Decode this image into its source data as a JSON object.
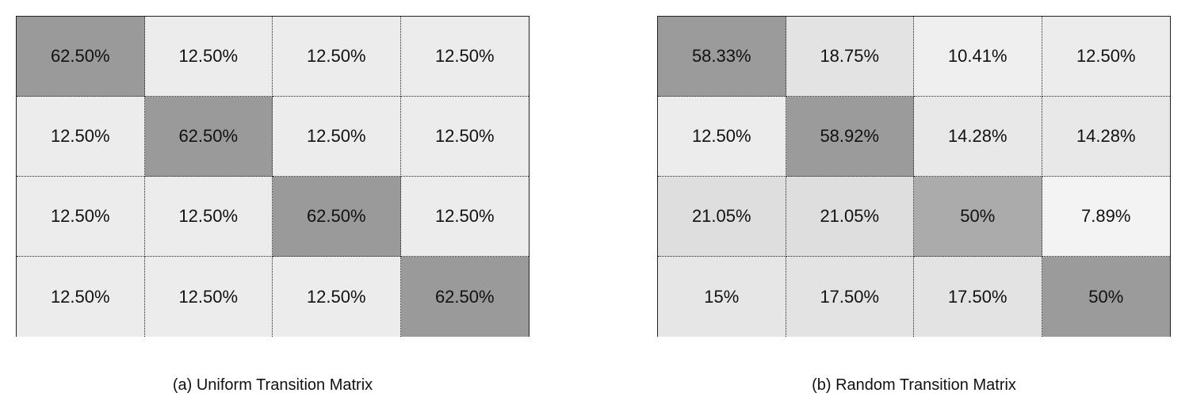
{
  "figures": [
    {
      "caption": "(a) Uniform Transition Matrix",
      "rows": [
        [
          "62.50%",
          "12.50%",
          "12.50%",
          "12.50%"
        ],
        [
          "12.50%",
          "62.50%",
          "12.50%",
          "12.50%"
        ],
        [
          "12.50%",
          "12.50%",
          "62.50%",
          "12.50%"
        ],
        [
          "12.50%",
          "12.50%",
          "12.50%",
          "62.50%"
        ]
      ],
      "shades": [
        [
          "#9a9a9a",
          "#ececec",
          "#ececec",
          "#ececec"
        ],
        [
          "#ececec",
          "#9a9a9a",
          "#ececec",
          "#ececec"
        ],
        [
          "#ececec",
          "#ececec",
          "#9a9a9a",
          "#ececec"
        ],
        [
          "#ececec",
          "#ececec",
          "#ececec",
          "#9a9a9a"
        ]
      ]
    },
    {
      "caption": "(b) Random Transition Matrix",
      "rows": [
        [
          "58.33%",
          "18.75%",
          "10.41%",
          "12.50%"
        ],
        [
          "12.50%",
          "58.92%",
          "14.28%",
          "14.28%"
        ],
        [
          "21.05%",
          "21.05%",
          "50%",
          "7.89%"
        ],
        [
          "15%",
          "17.50%",
          "17.50%",
          "50%"
        ]
      ],
      "shades": [
        [
          "#9b9b9b",
          "#e3e3e3",
          "#efefef",
          "#ececec"
        ],
        [
          "#ececec",
          "#9b9b9b",
          "#e8e8e8",
          "#e8e8e8"
        ],
        [
          "#dedede",
          "#dedede",
          "#ababab",
          "#f3f3f3"
        ],
        [
          "#e6e6e6",
          "#e3e3e3",
          "#e3e3e3",
          "#9b9b9b"
        ]
      ]
    }
  ]
}
